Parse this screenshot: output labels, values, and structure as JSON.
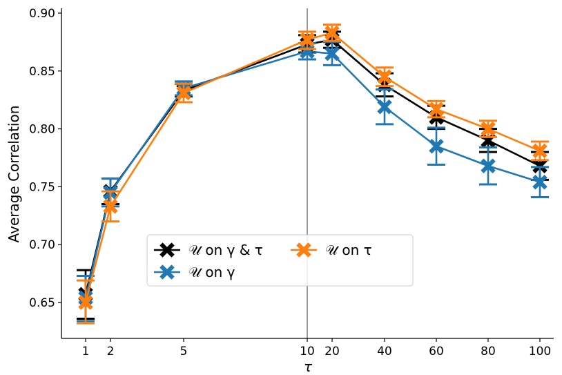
{
  "chart_data": {
    "type": "line",
    "xlabel": "τ",
    "ylabel": "Average Correlation",
    "ylim": [
      0.62,
      0.903
    ],
    "y_ticks": [
      "0.65",
      "0.70",
      "0.75",
      "0.80",
      "0.85",
      "0.90"
    ],
    "x_ticks": [
      "1",
      "2",
      "5",
      "10",
      "20",
      "40",
      "60",
      "80",
      "100"
    ],
    "x_note": "x axis is split at τ = 10 by a vertical divider line",
    "legend": {
      "placement": "lower-center",
      "columns": 2
    },
    "series": [
      {
        "name": "𝒰 on γ & τ",
        "color": "#000000",
        "x": [
          1,
          2,
          5,
          10,
          20,
          40,
          60,
          80,
          100
        ],
        "values": [
          0.657,
          0.746,
          0.833,
          0.873,
          0.877,
          0.838,
          0.81,
          0.79,
          0.768
        ],
        "err_low": [
          0.636,
          0.735,
          0.828,
          0.866,
          0.87,
          0.828,
          0.8,
          0.78,
          0.756
        ],
        "err_high": [
          0.678,
          0.757,
          0.839,
          0.881,
          0.884,
          0.848,
          0.82,
          0.8,
          0.78
        ]
      },
      {
        "name": "𝒰 on γ",
        "color": "#1f77b4",
        "x": [
          1,
          2,
          5,
          10,
          20,
          40,
          60,
          80,
          100
        ],
        "values": [
          0.654,
          0.745,
          0.835,
          0.867,
          0.865,
          0.819,
          0.785,
          0.768,
          0.754
        ],
        "err_low": [
          0.634,
          0.733,
          0.829,
          0.86,
          0.855,
          0.804,
          0.769,
          0.752,
          0.741
        ],
        "err_high": [
          0.673,
          0.757,
          0.841,
          0.874,
          0.875,
          0.834,
          0.801,
          0.784,
          0.767
        ]
      },
      {
        "name": "𝒰 on τ",
        "color": "#ff7f0e",
        "x": [
          1,
          2,
          5,
          10,
          20,
          40,
          60,
          80,
          100
        ],
        "values": [
          0.65,
          0.733,
          0.831,
          0.877,
          0.883,
          0.845,
          0.817,
          0.8,
          0.781
        ],
        "err_low": [
          0.632,
          0.72,
          0.823,
          0.869,
          0.876,
          0.837,
          0.81,
          0.793,
          0.773
        ],
        "err_high": [
          0.669,
          0.746,
          0.839,
          0.884,
          0.89,
          0.853,
          0.824,
          0.807,
          0.789
        ]
      }
    ]
  }
}
